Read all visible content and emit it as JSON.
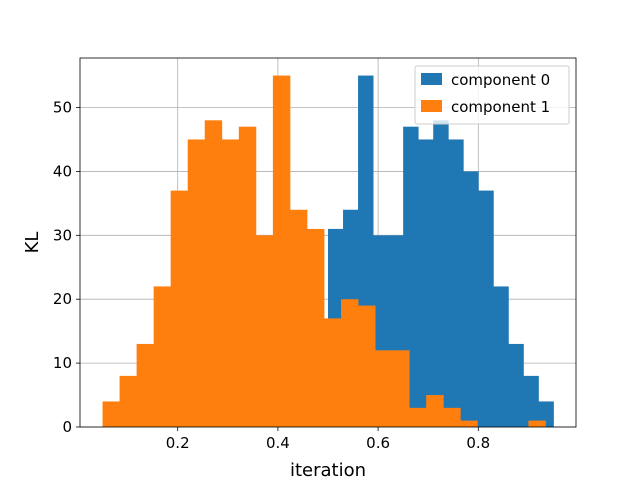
{
  "chart_data": {
    "type": "bar",
    "title": "",
    "xlabel": "iteration",
    "ylabel": "KL",
    "xlim": [
      0.005,
      0.995
    ],
    "ylim": [
      0,
      57.75
    ],
    "xticks": [
      0.2,
      0.4,
      0.6,
      0.8
    ],
    "yticks": [
      0,
      10,
      20,
      30,
      40,
      50
    ],
    "grid": true,
    "legend_position": "top-right",
    "series": [
      {
        "name": "component 0",
        "color": "#1f77b4",
        "bin_width": 0.03,
        "bins_start": [
          0.5,
          0.53,
          0.56,
          0.59,
          0.62,
          0.65,
          0.68,
          0.71,
          0.74,
          0.77,
          0.8,
          0.83,
          0.86,
          0.89,
          0.92
        ],
        "values": [
          31,
          34,
          55,
          30,
          30,
          47,
          45,
          48,
          45,
          40,
          37,
          22,
          13,
          8,
          4
        ]
      },
      {
        "name": "component 1",
        "color": "#ff7f0e",
        "bin_width": 0.034,
        "bins_start": [
          0.05,
          0.084,
          0.118,
          0.152,
          0.186,
          0.22,
          0.254,
          0.288,
          0.322,
          0.356,
          0.39,
          0.424,
          0.458,
          0.492,
          0.526,
          0.56,
          0.594,
          0.628,
          0.662,
          0.696,
          0.73,
          0.764,
          0.798,
          0.832,
          0.866,
          0.9
        ],
        "values": [
          4,
          8,
          13,
          22,
          37,
          45,
          48,
          45,
          47,
          30,
          55,
          34,
          31,
          17,
          20,
          19,
          12,
          12,
          3,
          5,
          3,
          1,
          0,
          0,
          0,
          1
        ]
      }
    ]
  }
}
